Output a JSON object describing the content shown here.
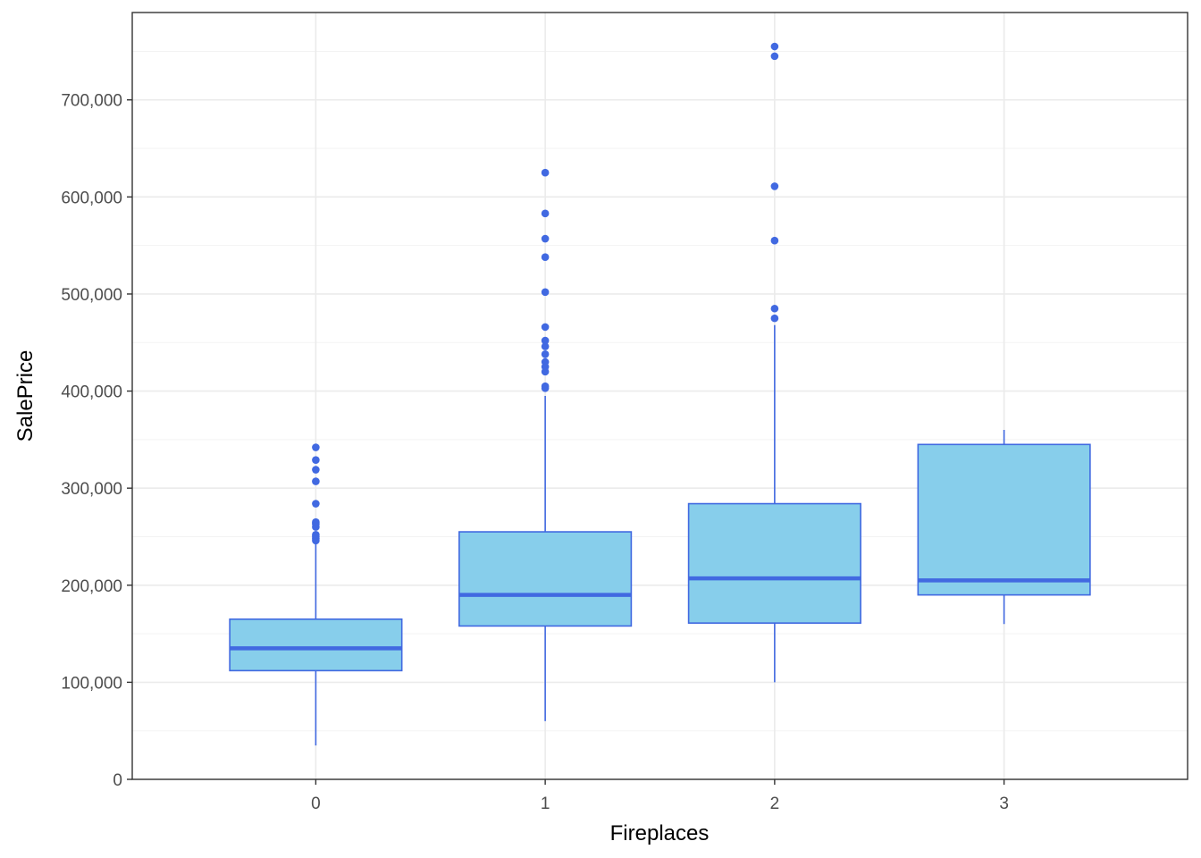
{
  "chart_data": {
    "type": "boxplot",
    "title": "",
    "xlabel": "Fireplaces",
    "ylabel": "SalePrice",
    "categories": [
      "0",
      "1",
      "2",
      "3"
    ],
    "ylim": [
      0,
      790000
    ],
    "y_ticks": [
      0,
      100000,
      200000,
      300000,
      400000,
      500000,
      600000,
      700000
    ],
    "y_tick_labels": [
      "0",
      "100,000",
      "200,000",
      "300,000",
      "400,000",
      "500,000",
      "600,000",
      "700,000"
    ],
    "grid": true,
    "legend": "none",
    "colors": {
      "box_fill": "#87CEEB",
      "box_stroke": "#4169E1",
      "grid": "#ebebeb",
      "panel_border": "#333333"
    },
    "boxes": [
      {
        "category": "0",
        "whisker_low": 34900,
        "q1": 112000,
        "median": 135000,
        "q3": 165000,
        "whisker_high": 244000,
        "outliers": [
          246000,
          248000,
          250000,
          252000,
          260000,
          263000,
          265000,
          284000,
          307000,
          319000,
          329000,
          342000
        ]
      },
      {
        "category": "1",
        "whisker_low": 60000,
        "q1": 158000,
        "median": 190000,
        "q3": 255000,
        "whisker_high": 395000,
        "outliers": [
          403000,
          405000,
          420000,
          425000,
          430000,
          438000,
          446000,
          452000,
          466000,
          502000,
          538000,
          557000,
          583000,
          625000
        ]
      },
      {
        "category": "2",
        "whisker_low": 100000,
        "q1": 161000,
        "median": 207000,
        "q3": 284000,
        "whisker_high": 468000,
        "outliers": [
          475000,
          485000,
          555000,
          611000,
          745000,
          755000
        ]
      },
      {
        "category": "3",
        "whisker_low": 160000,
        "q1": 190000,
        "median": 205000,
        "q3": 345000,
        "whisker_high": 360000,
        "outliers": []
      }
    ]
  }
}
